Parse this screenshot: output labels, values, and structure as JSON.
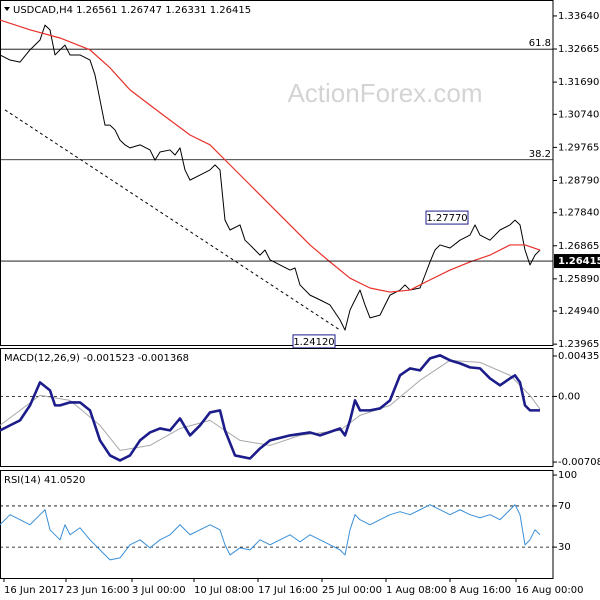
{
  "chart_data": [
    {
      "type": "line",
      "title": "USDCAD,H4  1.26561 1.26747 1.26331 1.26415",
      "watermark": "ActionForex.com",
      "xlim": [
        0,
        276.5
      ],
      "ylim": [
        1.2394,
        1.3411
      ],
      "yticks": [
        {
          "value": 1.3364,
          "label": "1.33640"
        },
        1.32665,
        {
          "value": 1.3169,
          "label": "1.31690"
        },
        {
          "value": 1.3074,
          "label": "1.30740"
        },
        1.29765,
        {
          "value": 1.2879,
          "label": "1.28790"
        },
        {
          "value": 1.2784,
          "label": "1.27840"
        },
        1.26865,
        {
          "value": 1.2589,
          "label": "1.25890"
        },
        {
          "value": 1.2494,
          "label": "1.24940"
        },
        1.23965
      ],
      "levels": [
        {
          "value": 1.3266,
          "label": "61.8"
        },
        {
          "value": 1.294,
          "label": "38.2"
        }
      ],
      "last": 1.26415,
      "annotations": [
        {
          "x": 239,
          "value": 1.2777,
          "label": "1.27770"
        },
        {
          "x": 172.5,
          "value": 1.2412,
          "label": "1.24120"
        }
      ],
      "trendline": {
        "x": [
          2.5,
          170
        ],
        "values": [
          1.3087,
          1.2438
        ],
        "color": "#000000"
      },
      "series": [
        {
          "color": "#000000",
          "width": 1,
          "x": [
            0,
            5,
            10,
            15,
            20,
            22.5,
            25,
            27.5,
            30,
            32.5,
            35,
            40,
            45,
            47.5,
            50,
            52.5,
            55,
            57.5,
            60,
            62.5,
            65,
            70,
            75,
            77.5,
            80,
            85,
            87.5,
            90,
            92.5,
            95,
            100,
            105,
            107.5,
            110,
            112.5,
            115,
            120,
            122.5,
            125,
            130,
            132.5,
            135,
            140,
            145,
            147.5,
            150,
            155,
            160,
            165,
            170,
            172.5,
            175,
            177.5,
            180,
            182.5,
            185,
            190,
            192.5,
            195,
            200,
            202.5,
            205,
            210,
            212.5,
            215,
            217.5,
            220,
            225,
            230,
            235,
            237.5,
            240,
            245,
            250,
            255,
            257.5,
            260,
            262.5,
            265,
            267.5,
            270
          ],
          "values": [
            1.3249,
            1.3234,
            1.3228,
            1.3264,
            1.3293,
            1.3337,
            1.3323,
            1.3249,
            1.3264,
            1.3278,
            1.3249,
            1.3249,
            1.3234,
            1.319,
            1.3116,
            1.3042,
            1.3042,
            1.3028,
            1.2998,
            1.2984,
            1.2975,
            1.2984,
            1.2969,
            1.2939,
            1.2963,
            1.2969,
            1.2954,
            1.2975,
            1.291,
            1.288,
            1.2895,
            1.291,
            1.2925,
            1.291,
            1.2762,
            1.2733,
            1.2748,
            1.2703,
            1.2689,
            1.2659,
            1.2674,
            1.2645,
            1.263,
            1.2615,
            1.2621,
            1.2571,
            1.2541,
            1.2527,
            1.2512,
            1.2468,
            1.2438,
            1.2497,
            1.2527,
            1.2556,
            1.2512,
            1.2474,
            1.2482,
            1.2512,
            1.2541,
            1.2556,
            1.2571,
            1.2556,
            1.2562,
            1.26,
            1.2639,
            1.2674,
            1.2689,
            1.268,
            1.2703,
            1.2718,
            1.2748,
            1.2718,
            1.2703,
            1.2733,
            1.2748,
            1.2762,
            1.2748,
            1.2674,
            1.263,
            1.2659,
            1.2674
          ]
        },
        {
          "color": "#e8302a",
          "width": 1.2,
          "x": [
            0,
            15,
            30,
            45,
            55,
            65,
            75,
            85,
            95,
            105,
            115,
            125,
            135,
            145,
            155,
            165,
            175,
            185,
            195,
            205,
            215,
            225,
            235,
            245,
            255,
            262.5,
            270
          ],
          "values": [
            1.3352,
            1.3323,
            1.3299,
            1.3264,
            1.3211,
            1.3146,
            1.3101,
            1.3057,
            1.3013,
            1.2984,
            1.2925,
            1.2866,
            1.2807,
            1.2748,
            1.2689,
            1.2639,
            1.2591,
            1.2562,
            1.255,
            1.2556,
            1.2586,
            1.2615,
            1.2639,
            1.2659,
            1.2689,
            1.2689,
            1.2674
          ]
        }
      ]
    },
    {
      "type": "line",
      "title": "MACD(12,26,9) -0.001523 -0.001368",
      "xlim": [
        0,
        276.5
      ],
      "ylim": [
        -0.00751,
        0.00522
      ],
      "yticks": [
        0.004357,
        {
          "value": 0,
          "label": "0.00"
        },
        -0.007081
      ],
      "levels": [
        {
          "value": 0
        }
      ],
      "series": [
        {
          "color": "#a8a8a8",
          "width": 1,
          "x": [
            0,
            20,
            35,
            50,
            60,
            75,
            90,
            105,
            120,
            135,
            150,
            170,
            180,
            195,
            210,
            225,
            240,
            255,
            265,
            270
          ],
          "values": [
            -0.00313,
            0.00011,
            -0.00043,
            -0.00313,
            -0.00583,
            -0.00529,
            -0.00346,
            -0.00259,
            -0.00475,
            -0.00529,
            -0.00421,
            -0.00367,
            -0.00205,
            -0.00097,
            0.00173,
            0.00389,
            0.00367,
            0.00227,
            0.00011,
            -0.00137
          ]
        },
        {
          "color": "#1c1c8a",
          "width": 2.6,
          "x": [
            0,
            5,
            10,
            15,
            20,
            25,
            27.5,
            30,
            35,
            40,
            45,
            50,
            55,
            60,
            65,
            70,
            75,
            80,
            85,
            90,
            95,
            100,
            105,
            110,
            112.5,
            117.5,
            125,
            130,
            135,
            145,
            155,
            160,
            170,
            172.5,
            175,
            177.5,
            180,
            185,
            190,
            195,
            200,
            205,
            210,
            215,
            220,
            225,
            230,
            235,
            240,
            245,
            250,
            255,
            257.5,
            260,
            262.5,
            265,
            270
          ],
          "values": [
            -0.00367,
            -0.00313,
            -0.00259,
            -0.00097,
            0.00151,
            0.00065,
            -0.00097,
            -0.00097,
            -0.00065,
            -0.00065,
            -0.00151,
            -0.00475,
            -0.00637,
            -0.00691,
            -0.00637,
            -0.00475,
            -0.00389,
            -0.00346,
            -0.00367,
            -0.00238,
            -0.00421,
            -0.00313,
            -0.00173,
            -0.00151,
            -0.00367,
            -0.00637,
            -0.0067,
            -0.00562,
            -0.00475,
            -0.00421,
            -0.00389,
            -0.00421,
            -0.00346,
            -0.00421,
            -0.00259,
            -0.00043,
            -0.00151,
            -0.00151,
            -0.0013,
            -0.00043,
            0.00227,
            0.00302,
            0.00281,
            0.0041,
            0.00443,
            0.00389,
            0.00356,
            0.00313,
            0.00302,
            0.00194,
            0.00119,
            0.00194,
            0.00227,
            0.00151,
            -0.00097,
            -0.00151,
            -0.00151
          ]
        }
      ]
    },
    {
      "type": "line",
      "title": "RSI(14) 41.0520",
      "xlim": [
        0,
        276.5
      ],
      "ylim": [
        0,
        104.9
      ],
      "yticks": [
        100,
        70,
        30
      ],
      "levels": [
        {
          "value": 70
        },
        {
          "value": 30
        }
      ],
      "xticks": [
        {
          "value": 2,
          "label": "16 Jun 2017"
        },
        {
          "value": 33,
          "label": "23 Jun 16:00"
        },
        {
          "value": 66,
          "label": "3 Jul 00:00"
        },
        {
          "value": 97,
          "label": "10 Jul 08:00"
        },
        {
          "value": 129,
          "label": "17 Jul 16:00"
        },
        {
          "value": 161,
          "label": "25 Jul 00:00"
        },
        {
          "value": 193,
          "label": "1 Aug 08:00"
        },
        {
          "value": 225,
          "label": "8 Aug 16:00"
        },
        {
          "value": 258,
          "label": "16 Aug 00:00"
        }
      ],
      "series": [
        {
          "color": "#3a8fd8",
          "width": 1,
          "x": [
            0,
            5,
            10,
            15,
            20,
            22.5,
            25,
            30,
            32.5,
            35,
            40,
            45,
            50,
            55,
            60,
            65,
            70,
            75,
            80,
            85,
            90,
            95,
            100,
            105,
            110,
            112.5,
            115,
            120,
            125,
            130,
            135,
            140,
            145,
            150,
            155,
            160,
            165,
            170,
            172.5,
            175,
            177.5,
            180,
            185,
            190,
            195,
            200,
            205,
            210,
            215,
            220,
            225,
            230,
            235,
            240,
            245,
            250,
            255,
            257.5,
            260,
            262.5,
            265,
            267.5,
            270
          ],
          "values": [
            51.7,
            61.5,
            56.6,
            51.7,
            61.5,
            66.3,
            46.8,
            37.1,
            51.7,
            42.0,
            48.8,
            37.1,
            27.3,
            17.6,
            19.5,
            32.2,
            37.1,
            29.3,
            37.1,
            42.0,
            51.7,
            42.0,
            46.8,
            51.7,
            46.8,
            32.2,
            22.4,
            29.3,
            27.3,
            37.1,
            32.2,
            37.1,
            42.0,
            35.1,
            42.0,
            37.1,
            32.2,
            27.3,
            22.4,
            46.8,
            61.5,
            56.6,
            51.7,
            56.6,
            61.5,
            64.4,
            61.5,
            66.3,
            71.2,
            66.3,
            61.5,
            66.3,
            61.5,
            58.5,
            61.5,
            56.6,
            66.3,
            71.2,
            61.5,
            32.2,
            37.1,
            46.8,
            42.0
          ]
        }
      ]
    }
  ]
}
